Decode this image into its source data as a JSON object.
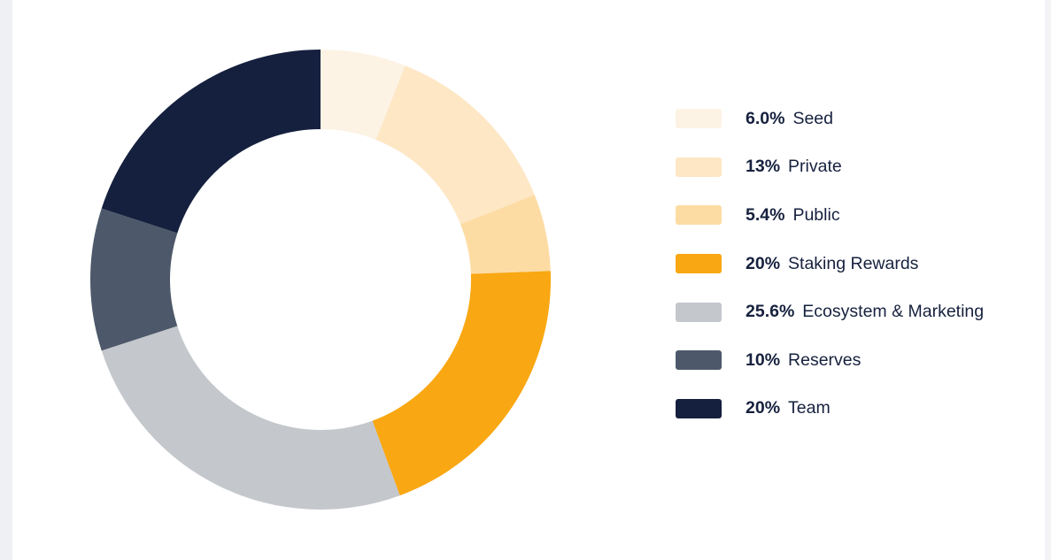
{
  "chart_data": {
    "type": "pie",
    "variant": "donut",
    "legend_position": "right",
    "series": [
      {
        "name": "Seed",
        "label_pct": "6.0%",
        "value": 6.0,
        "color": "#fdf3e4"
      },
      {
        "name": "Private",
        "label_pct": "13%",
        "value": 13,
        "color": "#fde7c5"
      },
      {
        "name": "Public",
        "label_pct": "5.4%",
        "value": 5.4,
        "color": "#fddca4"
      },
      {
        "name": "Staking Rewards",
        "label_pct": "20%",
        "value": 20,
        "color": "#f9a712"
      },
      {
        "name": "Ecosystem & Marketing",
        "label_pct": "25.6%",
        "value": 25.6,
        "color": "#c4c7cc"
      },
      {
        "name": "Reserves",
        "label_pct": "10%",
        "value": 10,
        "color": "#4d586a"
      },
      {
        "name": "Team",
        "label_pct": "20%",
        "value": 20,
        "color": "#15203e"
      }
    ]
  }
}
